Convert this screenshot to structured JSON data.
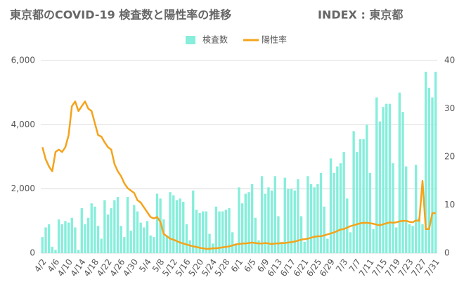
{
  "chart_data": {
    "type": "bar",
    "title": "東京都のCOVID-19 検査数と陽性率の推移",
    "subtitle": "INDEX : 東京都",
    "categories": [
      "4/2",
      null,
      null,
      null,
      "4/6",
      null,
      null,
      null,
      "4/10",
      null,
      null,
      null,
      "4/14",
      null,
      null,
      null,
      "4/18",
      null,
      null,
      null,
      "4/22",
      null,
      null,
      null,
      "4/26",
      null,
      null,
      null,
      "4/30",
      null,
      null,
      null,
      "5/4",
      null,
      null,
      null,
      "5/8",
      null,
      null,
      null,
      "5/12",
      null,
      null,
      null,
      "5/16",
      null,
      null,
      null,
      "5/20",
      null,
      null,
      null,
      "5/24",
      null,
      null,
      null,
      "5/28",
      null,
      null,
      null,
      "6/1",
      null,
      null,
      null,
      "6/5",
      null,
      null,
      null,
      "6/9",
      null,
      null,
      null,
      "6/13",
      null,
      null,
      null,
      "6/17",
      null,
      null,
      null,
      "6/21",
      null,
      null,
      null,
      "6/25",
      null,
      null,
      null,
      "6/29",
      null,
      null,
      null,
      "7/3",
      null,
      null,
      null,
      "7/7",
      null,
      null,
      null,
      "7/11",
      null,
      null,
      null,
      "7/15",
      null,
      null,
      null,
      "7/19",
      null,
      null,
      null,
      "7/23",
      null,
      null,
      null,
      "7/27",
      null,
      null,
      null,
      "7/31"
    ],
    "series": [
      {
        "name": "検査数",
        "type": "bar",
        "color": "#86eedb",
        "values": [
          500,
          800,
          900,
          200,
          100,
          1050,
          900,
          1000,
          950,
          1100,
          800,
          100,
          1400,
          900,
          1100,
          1550,
          1450,
          850,
          450,
          1650,
          1200,
          1400,
          1650,
          1750,
          850,
          500,
          1750,
          700,
          1500,
          1300,
          950,
          800,
          1000,
          550,
          500,
          1850,
          1700,
          1050,
          550,
          1900,
          1800,
          1650,
          1700,
          1600,
          900,
          400,
          1950,
          1350,
          1250,
          1300,
          1300,
          600,
          300,
          1450,
          1300,
          1300,
          1350,
          1400,
          650,
          300,
          2050,
          1550,
          1850,
          1900,
          2150,
          1100,
          400,
          2400,
          1850,
          2050,
          1950,
          2400,
          1150,
          350,
          2350,
          2000,
          2000,
          1950,
          2300,
          1150,
          350,
          2400,
          2150,
          2050,
          2150,
          2500,
          1450,
          450,
          2950,
          2500,
          2700,
          2800,
          3150,
          1700,
          650,
          3800,
          3150,
          3550,
          3550,
          4000,
          2500,
          750,
          4850,
          4100,
          4550,
          4650,
          4650,
          2800,
          800,
          5000,
          4400,
          2700,
          900,
          850,
          2750,
          1100,
          900,
          5650,
          5150,
          4850,
          5650
        ]
      },
      {
        "name": "陽性率",
        "type": "line",
        "axis": "y2",
        "color": "#f4a31c",
        "values": [
          22,
          19.5,
          18,
          17,
          21,
          21.5,
          21,
          22,
          24.5,
          30.5,
          31.5,
          29.5,
          30.5,
          31.5,
          30,
          29.5,
          27,
          24.5,
          24.2,
          23,
          22,
          21.5,
          18.5,
          17,
          16,
          14.5,
          13.5,
          13,
          12.5,
          11,
          10.5,
          9.5,
          8.5,
          7.5,
          7.2,
          7.5,
          6.5,
          4,
          3.5,
          3,
          2.8,
          2.5,
          2.2,
          2,
          1.8,
          1.6,
          1.4,
          1.3,
          1.1,
          1,
          0.9,
          0.9,
          1,
          1,
          1.1,
          1.2,
          1.3,
          1.4,
          1.6,
          1.8,
          1.9,
          2,
          2,
          2.1,
          2.2,
          2.1,
          2,
          2,
          2.1,
          2,
          1.9,
          2,
          2,
          2.1,
          2.1,
          2.2,
          2.3,
          2.4,
          2.6,
          2.8,
          2.9,
          3,
          3.2,
          3.4,
          3.5,
          3.5,
          3.7,
          3.9,
          4.1,
          4.3,
          4.6,
          4.9,
          5,
          5.3,
          5.6,
          5.8,
          6,
          6.2,
          6.3,
          6.3,
          6.2,
          6.1,
          5.9,
          5.8,
          6,
          6.2,
          6.4,
          6.3,
          6.4,
          6.6,
          6.7,
          6.7,
          6.5,
          6.4,
          6.8,
          6.7,
          15,
          5,
          5,
          8.3,
          8.3
        ]
      }
    ],
    "ylim": [
      0,
      6000
    ],
    "yticks": [
      0,
      {
        "value": 2000,
        "label": "2,000"
      },
      {
        "value": 4000,
        "label": "4,000"
      },
      {
        "value": 6000,
        "label": "6,000"
      }
    ],
    "y2lim": [
      0,
      40
    ],
    "y2ticks": [
      0,
      10,
      20,
      30,
      40
    ],
    "grid": true,
    "legend": "top"
  }
}
